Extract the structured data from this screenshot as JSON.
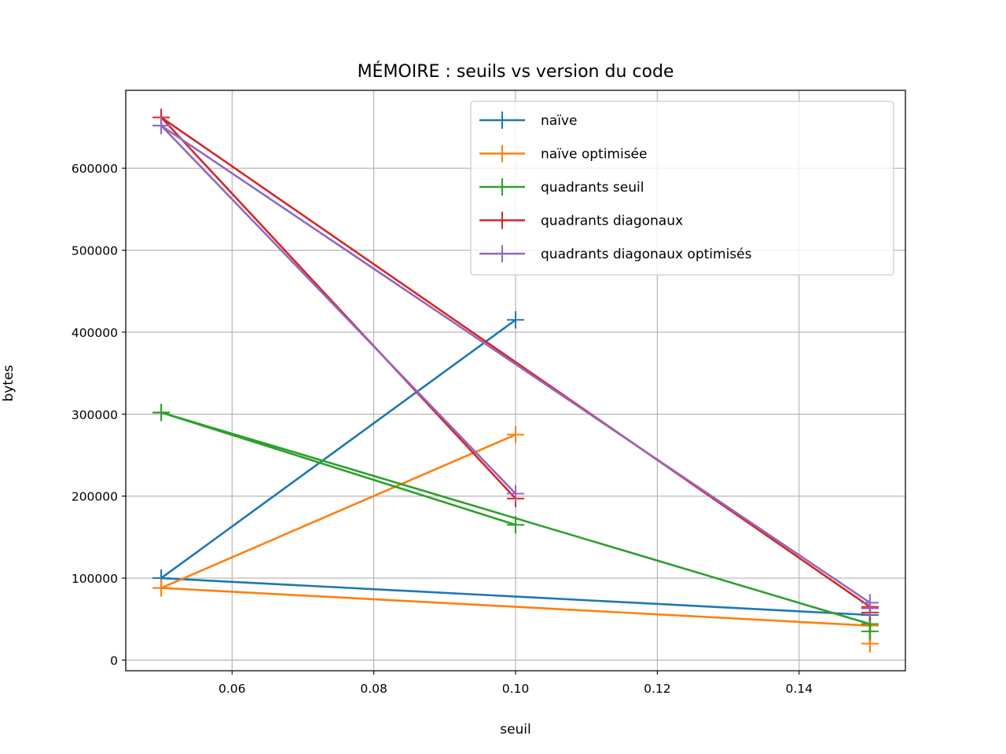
{
  "chart_data": {
    "type": "line",
    "title": "MÉMOIRE : seuils vs version du code",
    "xlabel": "seuil",
    "ylabel": "bytes",
    "xlim": [
      0.045,
      0.155
    ],
    "ylim": [
      -13000,
      695000
    ],
    "xticks": [
      0.06,
      0.08,
      0.1,
      0.12,
      0.14
    ],
    "xtick_labels": [
      "0.06",
      "0.08",
      "0.10",
      "0.12",
      "0.14"
    ],
    "yticks": [
      0,
      100000,
      200000,
      300000,
      400000,
      500000,
      600000
    ],
    "ytick_labels": [
      "0",
      "100000",
      "200000",
      "300000",
      "400000",
      "500000",
      "600000"
    ],
    "grid": true,
    "legend_position": "top-right",
    "marker": "+",
    "series": [
      {
        "name": "naïve",
        "color": "#1f77b4",
        "x": [
          0.05,
          0.1,
          0.05,
          0.15,
          0.15
        ],
        "y": [
          100000,
          415000,
          100000,
          55000,
          20000
        ]
      },
      {
        "name": "naïve optimisée",
        "color": "#ff7f0e",
        "x": [
          0.05,
          0.1,
          0.05,
          0.15,
          0.15
        ],
        "y": [
          88000,
          275000,
          88000,
          42000,
          20000
        ]
      },
      {
        "name": "quadrants seuil",
        "color": "#2ca02c",
        "x": [
          0.05,
          0.1,
          0.05,
          0.15,
          0.15
        ],
        "y": [
          302000,
          165000,
          302000,
          44000,
          35000
        ]
      },
      {
        "name": "quadrants diagonaux",
        "color": "#d62728",
        "x": [
          0.05,
          0.1,
          0.05,
          0.15,
          0.15
        ],
        "y": [
          662000,
          197000,
          662000,
          65000,
          58000
        ]
      },
      {
        "name": "quadrants diagonaux optimisés",
        "color": "#9467bd",
        "x": [
          0.05,
          0.1,
          0.05,
          0.15,
          0.15
        ],
        "y": [
          652000,
          203000,
          652000,
          70000,
          63000
        ]
      }
    ]
  }
}
